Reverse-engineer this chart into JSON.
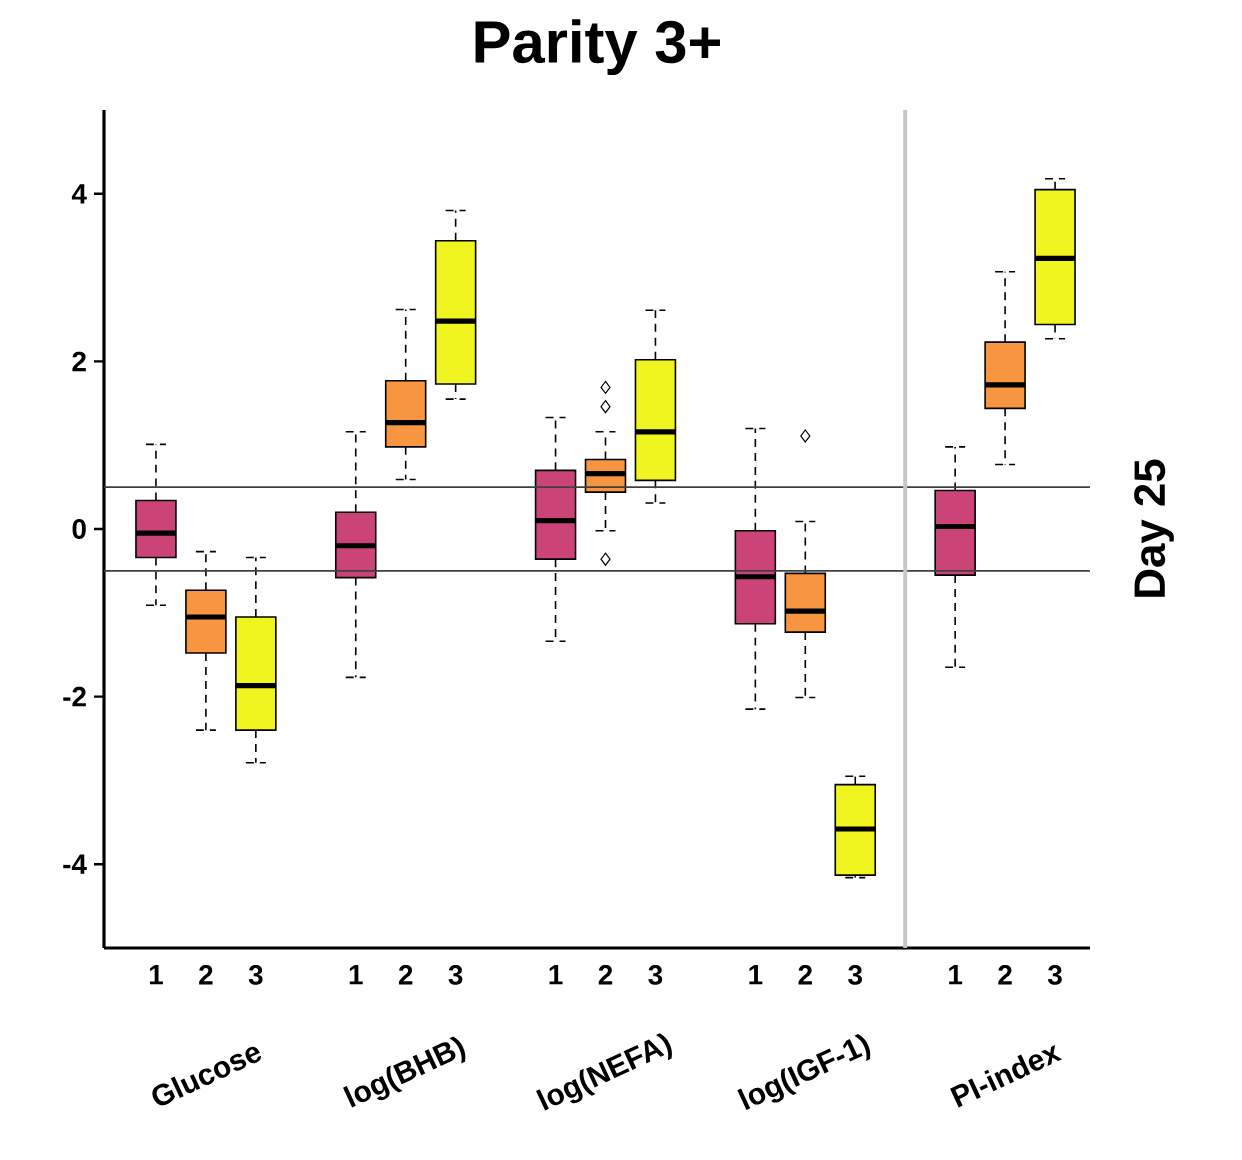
{
  "chart_data": {
    "type": "box",
    "title": "Parity 3+",
    "y2label": "Day 25",
    "categories": [
      "1",
      "2",
      "3",
      null,
      "1",
      "2",
      "3",
      null,
      "1",
      "2",
      "3",
      null,
      "1",
      "2",
      "3",
      null,
      "1",
      "2",
      "3"
    ],
    "colors": [
      "#cc4477",
      "#f79540",
      "#f0f520",
      null,
      "#cc4477",
      "#f79540",
      "#f0f520",
      null,
      "#cc4477",
      "#f79540",
      "#f0f520",
      null,
      "#cc4477",
      "#f79540",
      "#f0f520",
      null,
      "#cc4477",
      "#f79540",
      "#f0f520"
    ],
    "boxes": [
      {
        "low": -0.91,
        "q1": -0.34,
        "median": -0.05,
        "q3": 0.34,
        "high": 1.01
      },
      {
        "low": -2.4,
        "q1": -1.48,
        "median": -1.05,
        "q3": -0.73,
        "high": -0.27
      },
      {
        "low": -2.79,
        "q1": -2.4,
        "median": -1.87,
        "q3": -1.05,
        "high": -0.34
      },
      null,
      {
        "low": -1.77,
        "q1": -0.58,
        "median": -0.2,
        "q3": 0.2,
        "high": 1.16
      },
      {
        "low": 0.59,
        "q1": 0.98,
        "median": 1.27,
        "q3": 1.77,
        "high": 2.62
      },
      {
        "low": 1.55,
        "q1": 1.73,
        "median": 2.48,
        "q3": 3.44,
        "high": 3.8
      },
      null,
      {
        "low": -1.34,
        "q1": -0.36,
        "median": 0.1,
        "q3": 0.7,
        "high": 1.33
      },
      {
        "low": -0.02,
        "q1": 0.44,
        "median": 0.66,
        "q3": 0.83,
        "high": 1.16,
        "outliers": [
          1.69,
          1.46,
          -0.36
        ]
      },
      {
        "low": 0.31,
        "q1": 0.58,
        "median": 1.16,
        "q3": 2.02,
        "high": 2.61
      },
      null,
      {
        "low": -2.15,
        "q1": -1.13,
        "median": -0.57,
        "q3": -0.02,
        "high": 1.2
      },
      {
        "low": -2.01,
        "q1": -1.23,
        "median": -0.98,
        "q3": -0.53,
        "high": 0.09,
        "outliers": [
          1.11
        ]
      },
      {
        "low": -4.16,
        "q1": -4.13,
        "median": -3.58,
        "q3": -3.05,
        "high": -2.95
      },
      null,
      {
        "low": -1.65,
        "q1": -0.55,
        "median": 0.03,
        "q3": 0.46,
        "high": 0.98
      },
      {
        "low": 0.77,
        "q1": 1.44,
        "median": 1.72,
        "q3": 2.23,
        "high": 3.07
      },
      {
        "low": 2.27,
        "q1": 2.44,
        "median": 3.23,
        "q3": 4.05,
        "high": 4.18
      }
    ],
    "ylim": [
      -5,
      5
    ],
    "yticks": [
      -4,
      -2,
      0,
      2,
      4
    ],
    "ref_lines": [
      {
        "axis": "y",
        "value": 0.5,
        "color": "#404040"
      },
      {
        "axis": "y",
        "value": -0.5,
        "color": "#404040"
      }
    ],
    "annotations": [
      "Glucose",
      "log(BHB)",
      "log(NEFA)",
      "log(IGF-1)",
      "PI-index"
    ]
  }
}
